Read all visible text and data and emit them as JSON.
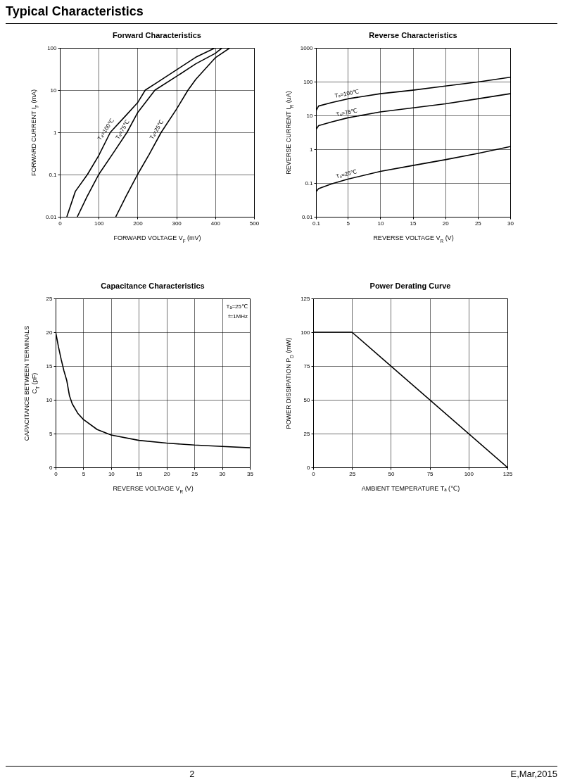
{
  "chart_data": [
    {
      "type": "line",
      "title": "Forward Characteristics",
      "xlabel": "FORWARD VOLTAGE V$_{F}$ (mV)",
      "ylabel": "FORWARD CURRENT I$_{F}$ (mA)",
      "log": "y",
      "xlim": [
        0,
        500
      ],
      "xticks": [
        0,
        100,
        200,
        300,
        400,
        500
      ],
      "ylim": [
        0.01,
        100
      ],
      "yticks": [
        0.01,
        0.1,
        1,
        10,
        100
      ],
      "grid": true,
      "annotations": [
        "Typical Characteristics",
        "2",
        "E,Mar,2015"
      ],
      "series": [
        {
          "name": "Tₐ=100℃",
          "color": "#000000",
          "x": [
            18,
            40,
            71,
            100,
            130,
            170,
            200,
            220,
            250,
            300,
            350,
            400
          ],
          "values": [
            0.01,
            0.04,
            0.1,
            0.28,
            1,
            2.5,
            5,
            10,
            15,
            30,
            60,
            100
          ]
        },
        {
          "name": "Tₐ=75℃",
          "color": "#000000",
          "x": [
            45,
            70,
            100,
            140,
            173,
            200,
            245,
            300,
            350,
            400,
            418
          ],
          "values": [
            0.01,
            0.03,
            0.1,
            0.35,
            1,
            2.9,
            10,
            21,
            42,
            74,
            100
          ]
        },
        {
          "name": "Tₐ=25℃",
          "color": "#000000",
          "x": [
            144,
            170,
            200,
            230,
            261,
            300,
            330,
            350,
            400,
            438
          ],
          "values": [
            0.01,
            0.03,
            0.1,
            0.3,
            1,
            3.5,
            10,
            18,
            58,
            100
          ]
        }
      ]
    },
    {
      "type": "line",
      "title": "Reverse Characteristics",
      "xlabel": "REVERSE VOLTAGE V$_{R}$ (V)",
      "ylabel": "REVERSE CURRENT I$_{R}$ (uA)",
      "log": "y",
      "xlim": [
        0.1,
        30
      ],
      "xticks": [
        0.1,
        5,
        10,
        15,
        20,
        25,
        30
      ],
      "ylim": [
        0.01,
        1000
      ],
      "yticks": [
        0.01,
        0.1,
        1,
        10,
        100,
        1000
      ],
      "grid": true,
      "series": [
        {
          "name": "Tₐ=100℃",
          "color": "#000000",
          "x": [
            0.1,
            0.5,
            2.5,
            5,
            10,
            15,
            20,
            25,
            30
          ],
          "values": [
            13.8,
            19,
            24,
            31,
            44,
            56,
            74,
            98,
            135
          ]
        },
        {
          "name": "Tₐ=75℃",
          "color": "#000000",
          "x": [
            0.1,
            0.5,
            2.5,
            5,
            10,
            15,
            20,
            25,
            30
          ],
          "values": [
            3.8,
            5,
            6.4,
            8.5,
            12.7,
            16.7,
            22,
            31,
            44
          ]
        },
        {
          "name": "Tₐ=25℃",
          "color": "#000000",
          "x": [
            0.1,
            0.5,
            2.5,
            5,
            10,
            15,
            20,
            25,
            30
          ],
          "values": [
            0.055,
            0.068,
            0.094,
            0.13,
            0.22,
            0.33,
            0.49,
            0.75,
            1.2
          ]
        }
      ]
    },
    {
      "type": "line",
      "title": "Capacitance Characteristics",
      "xlabel": "REVERSE VOLTAGE V$_{R}$ (V)",
      "ylabel": "CAPACITANCE BETWEEN TERMINALS\nC$_{T}$ (pF)",
      "xlim": [
        0,
        35
      ],
      "xticks": [
        0,
        5,
        10,
        15,
        20,
        25,
        30,
        35
      ],
      "ylim": [
        0,
        25
      ],
      "yticks": [
        0,
        5,
        10,
        15,
        20,
        25
      ],
      "grid": true,
      "annotations": [
        "Tₐ=25℃",
        "f=1MHz"
      ],
      "series": [
        {
          "color": "#000000",
          "x": [
            0,
            0.5,
            1,
            1.5,
            2,
            2.5,
            3,
            4,
            5,
            7.5,
            10,
            15,
            20,
            25,
            30,
            35
          ],
          "values": [
            20.1,
            17.9,
            16,
            14.3,
            12.9,
            10.6,
            9.4,
            8,
            7.1,
            5.6,
            4.8,
            4,
            3.6,
            3.3,
            3.1,
            2.9
          ]
        }
      ]
    },
    {
      "type": "line",
      "title": "Power Derating Curve",
      "xlabel": "AMBIENT TEMPERATURE Tₐ (℃)",
      "ylabel": "POWER DISSIPATION P$_{D}$ (mW)",
      "xlim": [
        0,
        125
      ],
      "xticks": [
        0,
        25,
        50,
        75,
        100,
        125
      ],
      "ylim": [
        0,
        125
      ],
      "yticks": [
        0,
        25,
        50,
        75,
        100,
        125
      ],
      "grid": true,
      "series": [
        {
          "color": "#000000",
          "x": [
            0,
            25,
            125
          ],
          "values": [
            100,
            100,
            0
          ]
        }
      ]
    }
  ]
}
